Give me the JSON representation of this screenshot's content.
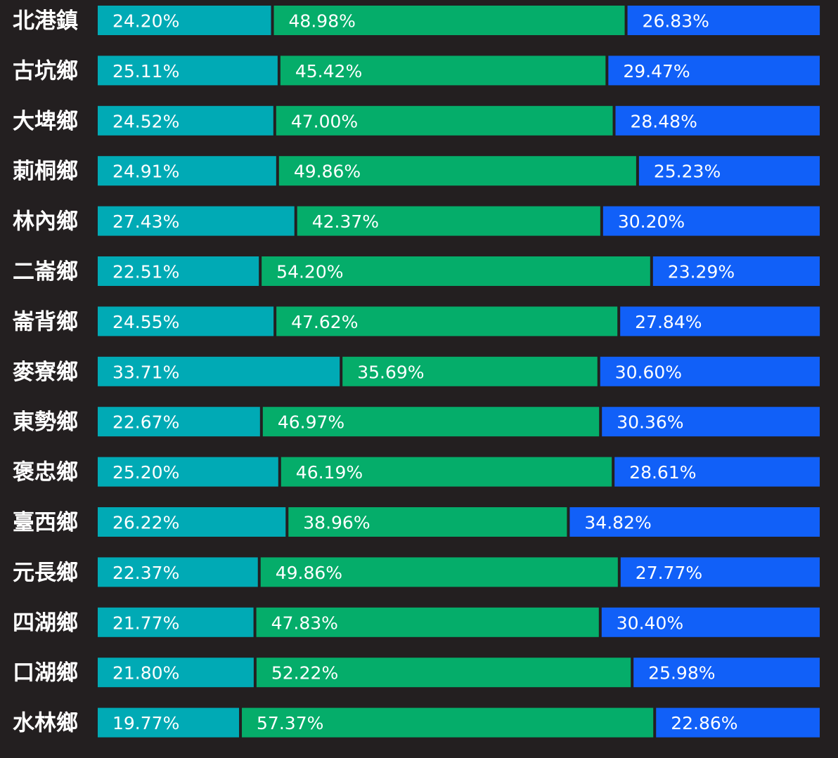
{
  "chart_data": {
    "type": "bar",
    "orientation": "horizontal",
    "stacked": "percent",
    "legend": "none",
    "grid": false,
    "categories": [
      "北港鎮",
      "古坑鄉",
      "大埤鄉",
      "莿桐鄉",
      "林內鄉",
      "二崙鄉",
      "崙背鄉",
      "麥寮鄉",
      "東勢鄉",
      "褒忠鄉",
      "臺西鄉",
      "元長鄉",
      "四湖鄉",
      "口湖鄉",
      "水林鄉"
    ],
    "series": [
      {
        "color": "#00aab5",
        "values": [
          24.2,
          25.11,
          24.52,
          24.91,
          27.43,
          22.51,
          24.55,
          33.71,
          22.67,
          25.2,
          26.22,
          22.37,
          21.77,
          21.8,
          19.77
        ],
        "labels": [
          "24.20%",
          "25.11%",
          "24.52%",
          "24.91%",
          "27.43%",
          "22.51%",
          "24.55%",
          "33.71%",
          "22.67%",
          "25.20%",
          "26.22%",
          "22.37%",
          "21.77%",
          "21.80%",
          "19.77%"
        ]
      },
      {
        "color": "#05ad6a",
        "values": [
          48.98,
          45.42,
          47.0,
          49.86,
          42.37,
          54.2,
          47.62,
          35.69,
          46.97,
          46.19,
          38.96,
          49.86,
          47.83,
          52.22,
          57.37
        ],
        "labels": [
          "48.98%",
          "45.42%",
          "47.00%",
          "49.86%",
          "42.37%",
          "54.20%",
          "47.62%",
          "35.69%",
          "46.97%",
          "46.19%",
          "38.96%",
          "49.86%",
          "47.83%",
          "52.22%",
          "57.37%"
        ]
      },
      {
        "color": "#1160f8",
        "values": [
          26.83,
          29.47,
          28.48,
          25.23,
          30.2,
          23.29,
          27.84,
          30.6,
          30.36,
          28.61,
          34.82,
          27.77,
          30.4,
          25.98,
          22.86
        ],
        "labels": [
          "26.83%",
          "29.47%",
          "28.48%",
          "25.23%",
          "30.20%",
          "23.29%",
          "27.84%",
          "30.60%",
          "30.36%",
          "28.61%",
          "34.82%",
          "27.77%",
          "30.40%",
          "25.98%",
          "22.86%"
        ]
      }
    ]
  }
}
